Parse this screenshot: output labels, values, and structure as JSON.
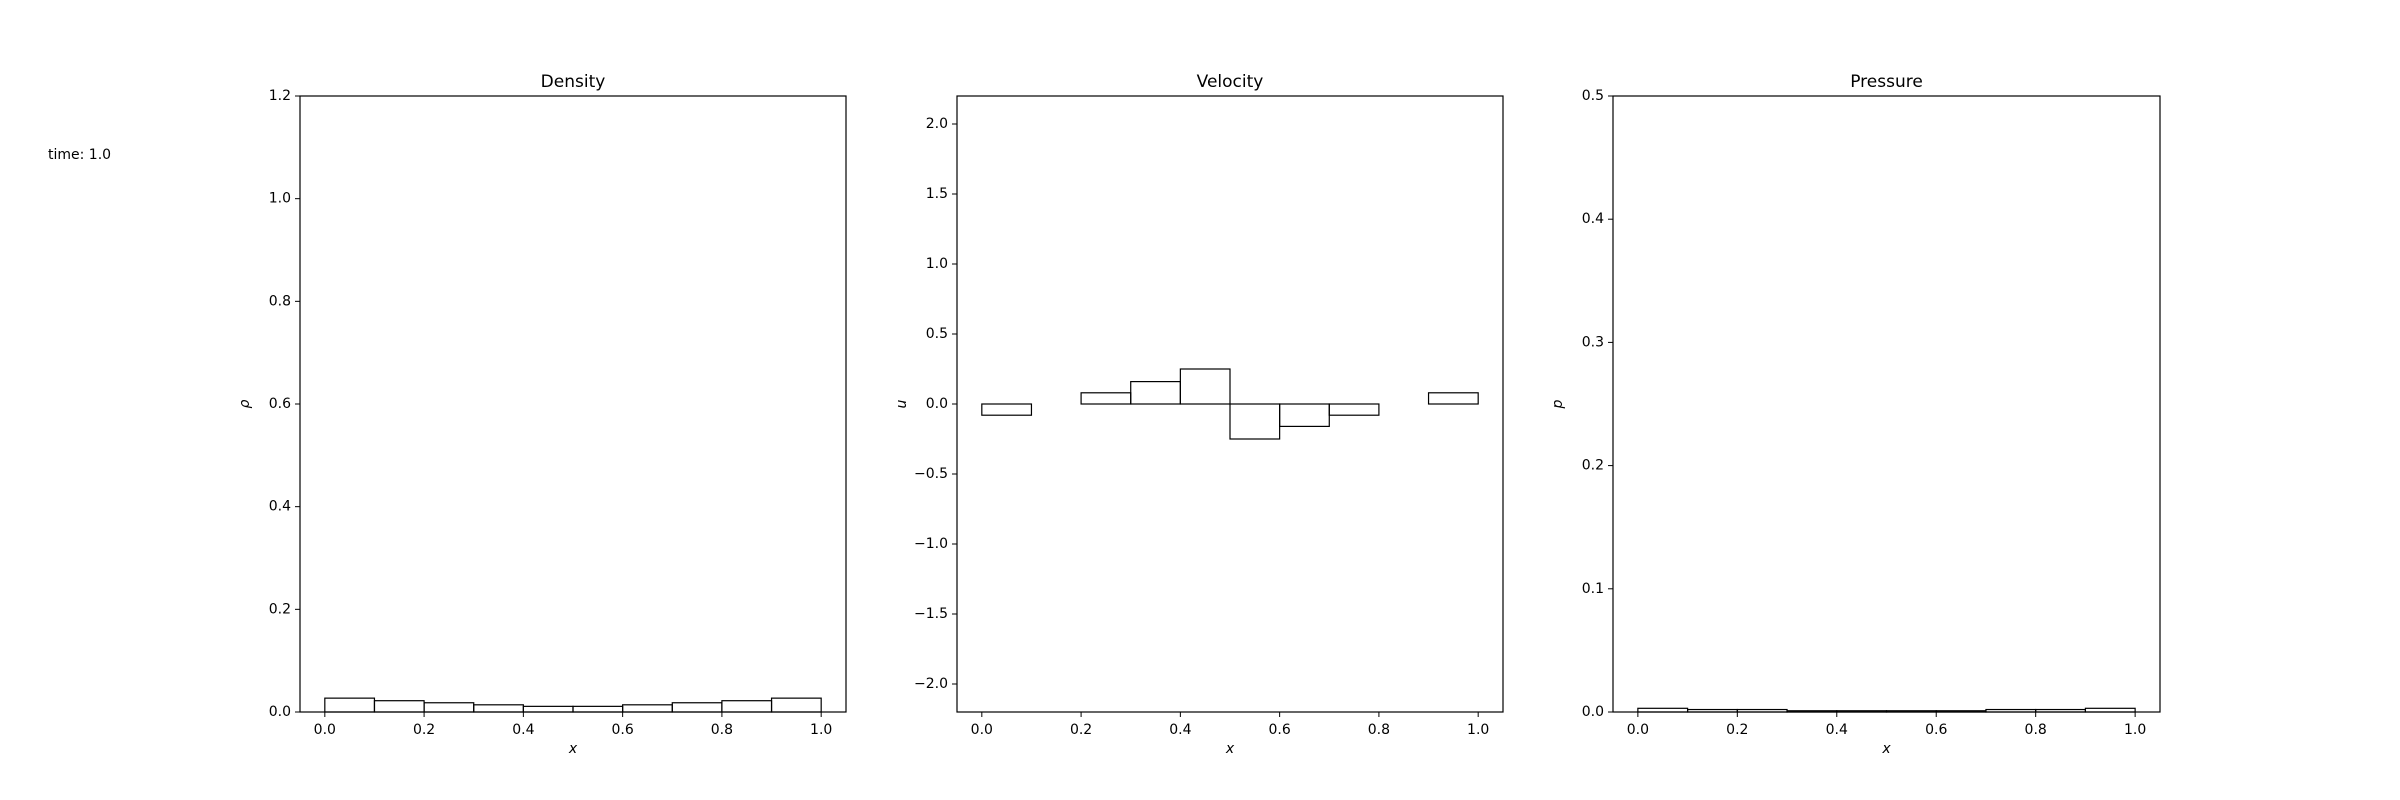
{
  "annotation": "time: 1.0",
  "chart_data": [
    {
      "type": "histogram",
      "title": "Density",
      "xlabel": "x",
      "ylabel": "ρ",
      "bins": [
        0,
        0.1,
        0.2,
        0.3,
        0.4,
        0.5,
        0.6,
        0.7,
        0.8,
        0.9,
        1.0
      ],
      "values": [
        0.027,
        0.022,
        0.018,
        0.014,
        0.011,
        0.011,
        0.014,
        0.018,
        0.022,
        0.027
      ],
      "color": "#000000",
      "xlim": [
        -0.05,
        1.05
      ],
      "xticks": [
        {
          "value": 0,
          "label": "0.0"
        },
        0.2,
        0.4,
        0.6,
        0.8,
        {
          "value": 1,
          "label": "1.0"
        }
      ],
      "ylim": [
        0,
        1.2
      ],
      "yticks": [
        {
          "value": 0,
          "label": "0.0"
        },
        0.2,
        0.4,
        0.6,
        0.8,
        {
          "value": 1,
          "label": "1.0"
        },
        1.2
      ]
    },
    {
      "type": "histogram",
      "title": "Velocity",
      "xlabel": "x",
      "ylabel": "u",
      "bins": [
        0,
        0.1,
        0.2,
        0.3,
        0.4,
        0.5,
        0.6,
        0.7,
        0.8,
        0.9,
        1.0
      ],
      "values": [
        -0.08,
        0,
        0.08,
        0.16,
        0.25,
        -0.25,
        -0.16,
        -0.08,
        0,
        0.08
      ],
      "color": "#000000",
      "xlim": [
        -0.05,
        1.05
      ],
      "xticks": [
        {
          "value": 0,
          "label": "0.0"
        },
        0.2,
        0.4,
        0.6,
        0.8,
        {
          "value": 1,
          "label": "1.0"
        }
      ],
      "ylim": [
        -2.2,
        2.2
      ],
      "yticks": [
        {
          "value": -2,
          "label": "−2.0"
        },
        {
          "value": -1.5,
          "label": "−1.5"
        },
        {
          "value": -1,
          "label": "−1.0"
        },
        {
          "value": -0.5,
          "label": "−0.5"
        },
        {
          "value": 0,
          "label": "0.0"
        },
        0.5,
        {
          "value": 1,
          "label": "1.0"
        },
        1.5,
        {
          "value": 2,
          "label": "2.0"
        }
      ]
    },
    {
      "type": "histogram",
      "title": "Pressure",
      "xlabel": "x",
      "ylabel": "p",
      "bins": [
        0,
        0.1,
        0.2,
        0.3,
        0.4,
        0.5,
        0.6,
        0.7,
        0.8,
        0.9,
        1.0
      ],
      "values": [
        0.003,
        0.002,
        0.002,
        0.001,
        0.001,
        0.001,
        0.001,
        0.002,
        0.002,
        0.003
      ],
      "color": "#000000",
      "xlim": [
        -0.05,
        1.05
      ],
      "xticks": [
        {
          "value": 0,
          "label": "0.0"
        },
        0.2,
        0.4,
        0.6,
        0.8,
        {
          "value": 1,
          "label": "1.0"
        }
      ],
      "ylim": [
        0,
        0.5
      ],
      "yticks": [
        {
          "value": 0,
          "label": "0.0"
        },
        0.1,
        0.2,
        0.3,
        0.4,
        0.5
      ]
    }
  ]
}
